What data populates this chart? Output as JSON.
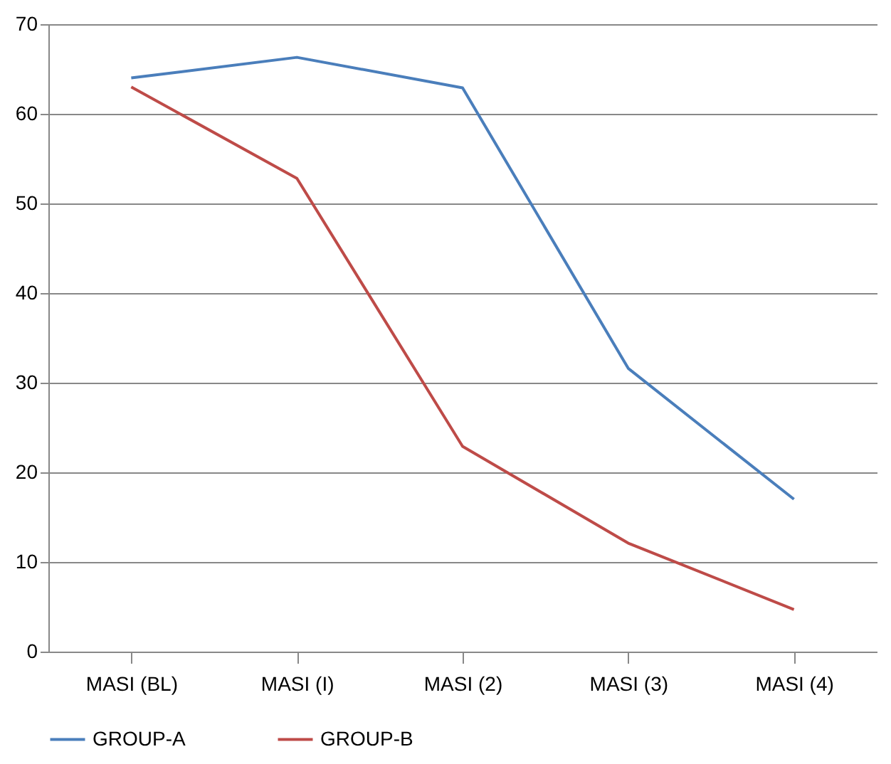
{
  "chart_data": {
    "type": "line",
    "categories": [
      "MASI (BL)",
      "MASI (I)",
      "MASI (2)",
      "MASI (3)",
      "MASI (4)"
    ],
    "series": [
      {
        "name": "GROUP-A",
        "color": "#4a7ebb",
        "values": [
          64.0,
          66.3,
          62.9,
          31.6,
          17.0
        ]
      },
      {
        "name": "GROUP-B",
        "color": "#be4b48",
        "values": [
          63.0,
          52.8,
          22.9,
          12.1,
          4.7
        ]
      }
    ],
    "ylim": [
      0,
      70
    ],
    "yticks": [
      0,
      10,
      20,
      30,
      40,
      50,
      60,
      70
    ],
    "grid": "y",
    "legend": "bottom",
    "marker": "none",
    "line_style": "solid"
  }
}
